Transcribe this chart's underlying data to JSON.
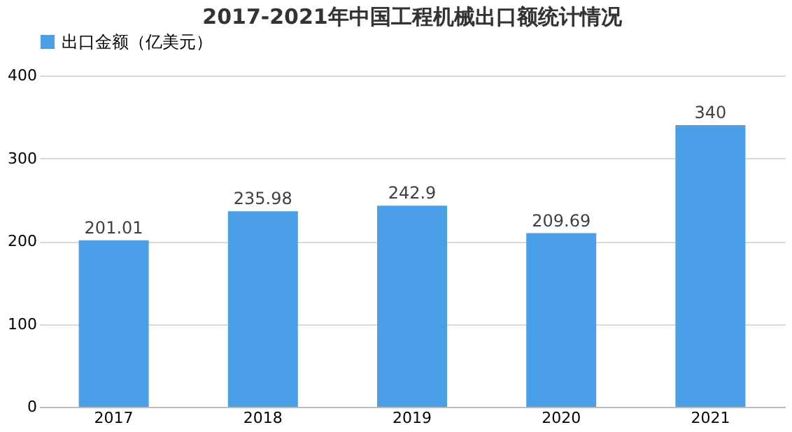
{
  "chart_data": {
    "type": "bar",
    "title": "2017-2021年中国工程机械出口额统计情况",
    "categories": [
      "2017",
      "2018",
      "2019",
      "2020",
      "2021"
    ],
    "series": [
      {
        "name": "出口金额（亿美元）",
        "color": "#4a9fe8",
        "values": [
          201.01,
          235.98,
          242.9,
          209.69,
          340
        ]
      }
    ],
    "ylim": [
      0,
      400
    ],
    "yticks": [
      0,
      100,
      200,
      300,
      400
    ],
    "grid": "y",
    "legend": "top",
    "data_labels": true
  }
}
